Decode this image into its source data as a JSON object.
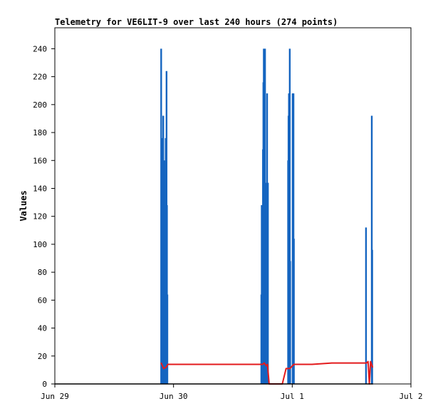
{
  "chart_data": {
    "type": "line",
    "title": "Telemetry for VE6LIT-9 over last 240 hours (274 points)",
    "xlabel": "",
    "ylabel": "Values",
    "xlim": [
      "2021-06-29T00:00",
      "2021-07-02T00:00"
    ],
    "ylim": [
      0,
      255
    ],
    "x_ticks": [
      "Jun 29",
      "Jun 30",
      "Jul 1",
      "Jul 2"
    ],
    "y_ticks": [
      0,
      20,
      40,
      60,
      80,
      100,
      120,
      140,
      160,
      180,
      200,
      220,
      240
    ],
    "grid": false,
    "legend": "none",
    "series": [
      {
        "color": "#1565c0",
        "style": "spikes",
        "points": [
          [
            "2021-06-29T21:30",
            240
          ],
          [
            "2021-06-29T21:35",
            48
          ],
          [
            "2021-06-29T21:40",
            176
          ],
          [
            "2021-06-29T21:45",
            88
          ],
          [
            "2021-06-29T21:55",
            192
          ],
          [
            "2021-06-29T22:00",
            160
          ],
          [
            "2021-06-29T22:05",
            160
          ],
          [
            "2021-06-29T22:25",
            176
          ],
          [
            "2021-06-29T22:30",
            128
          ],
          [
            "2021-06-29T22:35",
            224
          ],
          [
            "2021-06-29T22:40",
            128
          ],
          [
            "2021-06-29T22:45",
            64
          ],
          [
            "2021-06-30T17:45",
            64
          ],
          [
            "2021-06-30T17:50",
            128
          ],
          [
            "2021-06-30T17:55",
            96
          ],
          [
            "2021-06-30T18:05",
            168
          ],
          [
            "2021-06-30T18:10",
            216
          ],
          [
            "2021-06-30T18:15",
            240
          ],
          [
            "2021-06-30T18:20",
            192
          ],
          [
            "2021-06-30T18:25",
            120
          ],
          [
            "2021-06-30T18:30",
            240
          ],
          [
            "2021-06-30T18:35",
            96
          ],
          [
            "2021-06-30T18:45",
            144
          ],
          [
            "2021-06-30T18:55",
            208
          ],
          [
            "2021-06-30T19:05",
            144
          ],
          [
            "2021-06-30T23:10",
            160
          ],
          [
            "2021-06-30T23:15",
            192
          ],
          [
            "2021-06-30T23:20",
            208
          ],
          [
            "2021-06-30T23:30",
            240
          ],
          [
            "2021-06-30T23:35",
            88
          ],
          [
            "2021-07-01T00:05",
            208
          ],
          [
            "2021-07-01T00:10",
            156
          ],
          [
            "2021-07-01T00:15",
            208
          ],
          [
            "2021-07-01T00:20",
            104
          ],
          [
            "2021-07-01T14:55",
            112
          ],
          [
            "2021-07-01T16:05",
            192
          ],
          [
            "2021-07-01T16:10",
            96
          ]
        ]
      },
      {
        "color": "#e31a1c",
        "style": "line",
        "points": [
          [
            "2021-06-29T21:30",
            15
          ],
          [
            "2021-06-29T22:00",
            11
          ],
          [
            "2021-06-29T22:30",
            12
          ],
          [
            "2021-06-29T22:50",
            14
          ],
          [
            "2021-06-30T12:00",
            14
          ],
          [
            "2021-06-30T18:00",
            14
          ],
          [
            "2021-06-30T18:20",
            15
          ],
          [
            "2021-06-30T18:45",
            13
          ],
          [
            "2021-06-30T19:00",
            14
          ],
          [
            "2021-06-30T19:20",
            0
          ],
          [
            "2021-06-30T22:00",
            0
          ],
          [
            "2021-06-30T22:45",
            11
          ],
          [
            "2021-06-30T23:30",
            11
          ],
          [
            "2021-07-01T00:20",
            14
          ],
          [
            "2021-07-01T04:00",
            14
          ],
          [
            "2021-07-01T08:00",
            15
          ],
          [
            "2021-07-01T15:00",
            15
          ],
          [
            "2021-07-01T15:20",
            16
          ],
          [
            "2021-07-01T15:35",
            0
          ],
          [
            "2021-07-01T15:50",
            16
          ],
          [
            "2021-07-01T16:15",
            12
          ]
        ]
      },
      {
        "color": "#000000",
        "style": "line",
        "points": [
          [
            "2021-06-29T00:00",
            0
          ],
          [
            "2021-07-01T16:15",
            0
          ]
        ]
      }
    ]
  }
}
